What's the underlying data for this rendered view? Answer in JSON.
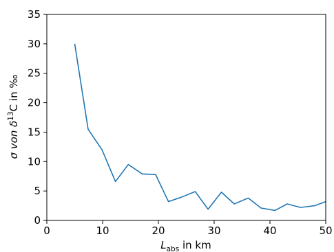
{
  "chart_data": {
    "type": "line",
    "title": "",
    "xlim": [
      0,
      50
    ],
    "ylim": [
      0,
      35
    ],
    "xticks": [
      0,
      10,
      20,
      30,
      40,
      50
    ],
    "yticks": [
      0,
      5,
      10,
      15,
      20,
      25,
      30,
      35
    ],
    "grid": false,
    "legend": "none",
    "xlabel": {
      "symbol": "L",
      "subscript": "abs",
      "suffix": " in km"
    },
    "ylabel": {
      "pre": "σ von δ",
      "superscript": "13",
      "post": "C in ‰"
    },
    "series": [
      {
        "color": "#1f77b4",
        "x": [
          5.0,
          7.4,
          9.9,
          12.3,
          14.6,
          17.1,
          19.5,
          21.8,
          24.0,
          26.6,
          28.9,
          31.3,
          33.6,
          36.1,
          38.4,
          40.9,
          43.1,
          45.5,
          48.0,
          50.3
        ],
        "y": [
          30.0,
          15.5,
          12.0,
          6.6,
          9.5,
          7.9,
          7.8,
          3.2,
          3.9,
          4.9,
          1.9,
          4.8,
          2.8,
          3.8,
          2.1,
          1.7,
          2.8,
          2.2,
          2.5,
          3.3
        ]
      }
    ]
  }
}
